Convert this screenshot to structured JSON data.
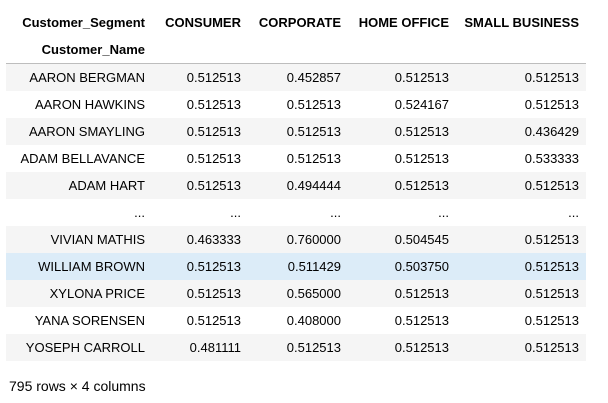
{
  "table": {
    "columns_name": "Customer_Segment",
    "index_name": "Customer_Name",
    "columns": [
      "CONSUMER",
      "CORPORATE",
      "HOME OFFICE",
      "SMALL BUSINESS"
    ],
    "rows": [
      {
        "name": "AARON BERGMAN",
        "values": [
          "0.512513",
          "0.452857",
          "0.512513",
          "0.512513"
        ]
      },
      {
        "name": "AARON HAWKINS",
        "values": [
          "0.512513",
          "0.512513",
          "0.524167",
          "0.512513"
        ]
      },
      {
        "name": "AARON SMAYLING",
        "values": [
          "0.512513",
          "0.512513",
          "0.512513",
          "0.436429"
        ]
      },
      {
        "name": "ADAM BELLAVANCE",
        "values": [
          "0.512513",
          "0.512513",
          "0.512513",
          "0.533333"
        ]
      },
      {
        "name": "ADAM HART",
        "values": [
          "0.512513",
          "0.494444",
          "0.512513",
          "0.512513"
        ]
      },
      {
        "name": "...",
        "values": [
          "...",
          "...",
          "...",
          "..."
        ]
      },
      {
        "name": "VIVIAN MATHIS",
        "values": [
          "0.463333",
          "0.760000",
          "0.504545",
          "0.512513"
        ]
      },
      {
        "name": "WILLIAM BROWN",
        "values": [
          "0.512513",
          "0.511429",
          "0.503750",
          "0.512513"
        ]
      },
      {
        "name": "XYLONA PRICE",
        "values": [
          "0.512513",
          "0.565000",
          "0.512513",
          "0.512513"
        ]
      },
      {
        "name": "YANA SORENSEN",
        "values": [
          "0.512513",
          "0.408000",
          "0.512513",
          "0.512513"
        ]
      },
      {
        "name": "YOSEPH CARROLL",
        "values": [
          "0.481111",
          "0.512513",
          "0.512513",
          "0.512513"
        ]
      }
    ],
    "hover_row_index": 7,
    "hover_color": "#dcecf8",
    "stripe_color": "#f5f5f5"
  },
  "footer": {
    "shape_text": "795 rows × 4 columns"
  }
}
